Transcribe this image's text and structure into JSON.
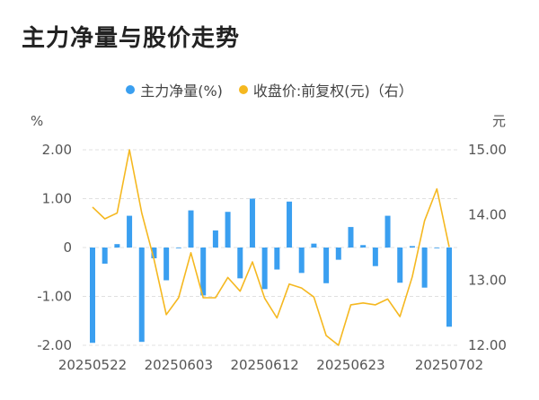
{
  "title": "主力净量与股价走势",
  "colors": {
    "bar": "#3a9ff0",
    "line": "#f5b820",
    "grid": "#e0e0e0"
  },
  "chart_data": {
    "type": "bar",
    "legend": [
      {
        "name": "主力净量(%)",
        "color": "#3a9ff0"
      },
      {
        "name": "收盘价:前复权(元)（右）",
        "color": "#f5b820"
      }
    ],
    "ylabel_left": "%",
    "ylabel_right": "元",
    "ylim_left": [
      -2,
      2
    ],
    "ylim_right": [
      12,
      15
    ],
    "yticks_left": [
      "2.00",
      "1.00",
      "0",
      "-1.00",
      "-2.00"
    ],
    "yticks_right": [
      "15.00",
      "14.00",
      "13.00",
      "12.00"
    ],
    "x_tick_labels": [
      "20250522",
      "20250603",
      "20250612",
      "20250623",
      "20250702"
    ],
    "series": [
      {
        "name": "主力净量(%)",
        "type": "bar",
        "values": [
          -1.95,
          -0.33,
          0.07,
          0.65,
          -1.93,
          -0.22,
          -0.67,
          0.0,
          0.76,
          -0.98,
          0.35,
          0.73,
          -0.63,
          1.0,
          -0.85,
          -0.45,
          0.94,
          -0.52,
          0.08,
          -0.73,
          -0.25,
          0.42,
          0.05,
          -0.38,
          0.65,
          -0.72,
          0.03,
          -0.82,
          0.0,
          -1.62
        ]
      },
      {
        "name": "收盘价:前复权(元)（右）",
        "type": "line",
        "values": [
          14.12,
          13.94,
          14.03,
          15.0,
          14.03,
          13.32,
          12.47,
          12.73,
          13.42,
          12.73,
          12.73,
          13.04,
          12.83,
          13.28,
          12.72,
          12.42,
          12.94,
          12.88,
          12.74,
          12.15,
          12.0,
          12.62,
          12.65,
          12.62,
          12.71,
          12.44,
          13.05,
          13.91,
          14.4,
          13.51
        ]
      }
    ]
  }
}
